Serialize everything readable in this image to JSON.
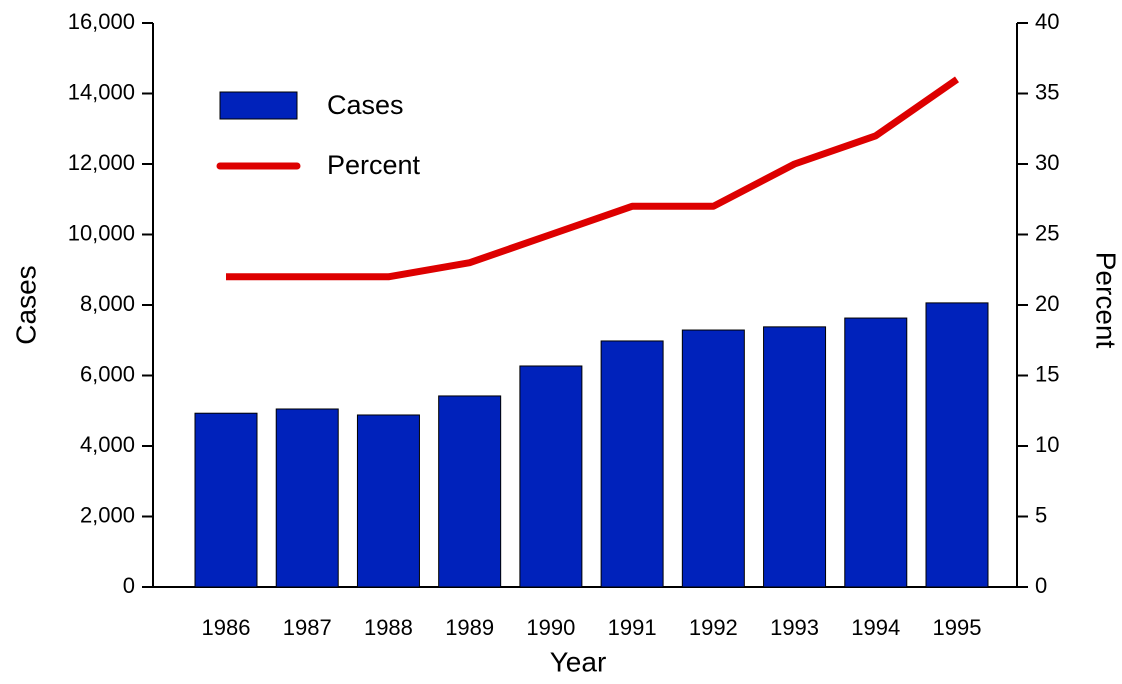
{
  "chart_data": {
    "type": "bar_line",
    "x_label": "Year",
    "y_label": "Cases",
    "y2_label": "Percent",
    "categories": [
      "1986",
      "1987",
      "1988",
      "1989",
      "1990",
      "1991",
      "1992",
      "1993",
      "1994",
      "1995"
    ],
    "series": [
      {
        "name": "Cases",
        "type": "bar",
        "color": "#0022bb",
        "values": [
          4930,
          5050,
          4880,
          5420,
          6270,
          6980,
          7290,
          7380,
          7630,
          8060
        ]
      },
      {
        "name": "Percent",
        "type": "line",
        "axis": "y2",
        "color": "#dd0000",
        "values": [
          22,
          22,
          22,
          23,
          25,
          27,
          27,
          30,
          32,
          36
        ]
      }
    ],
    "ylim": [
      0,
      16000
    ],
    "yticks": [
      0,
      {
        "value": 2000,
        "label": "2,000"
      },
      {
        "value": 4000,
        "label": "4,000"
      },
      {
        "value": 6000,
        "label": "6,000"
      },
      {
        "value": 8000,
        "label": "8,000"
      },
      {
        "value": 10000,
        "label": "10,000"
      },
      {
        "value": 12000,
        "label": "12,000"
      },
      {
        "value": 14000,
        "label": "14,000"
      },
      {
        "value": 16000,
        "label": "16,000"
      }
    ],
    "y2lim": [
      0,
      40
    ],
    "y2ticks": [
      0,
      5,
      10,
      15,
      20,
      25,
      30,
      35,
      40
    ],
    "grid": false,
    "legend": "upper left"
  }
}
